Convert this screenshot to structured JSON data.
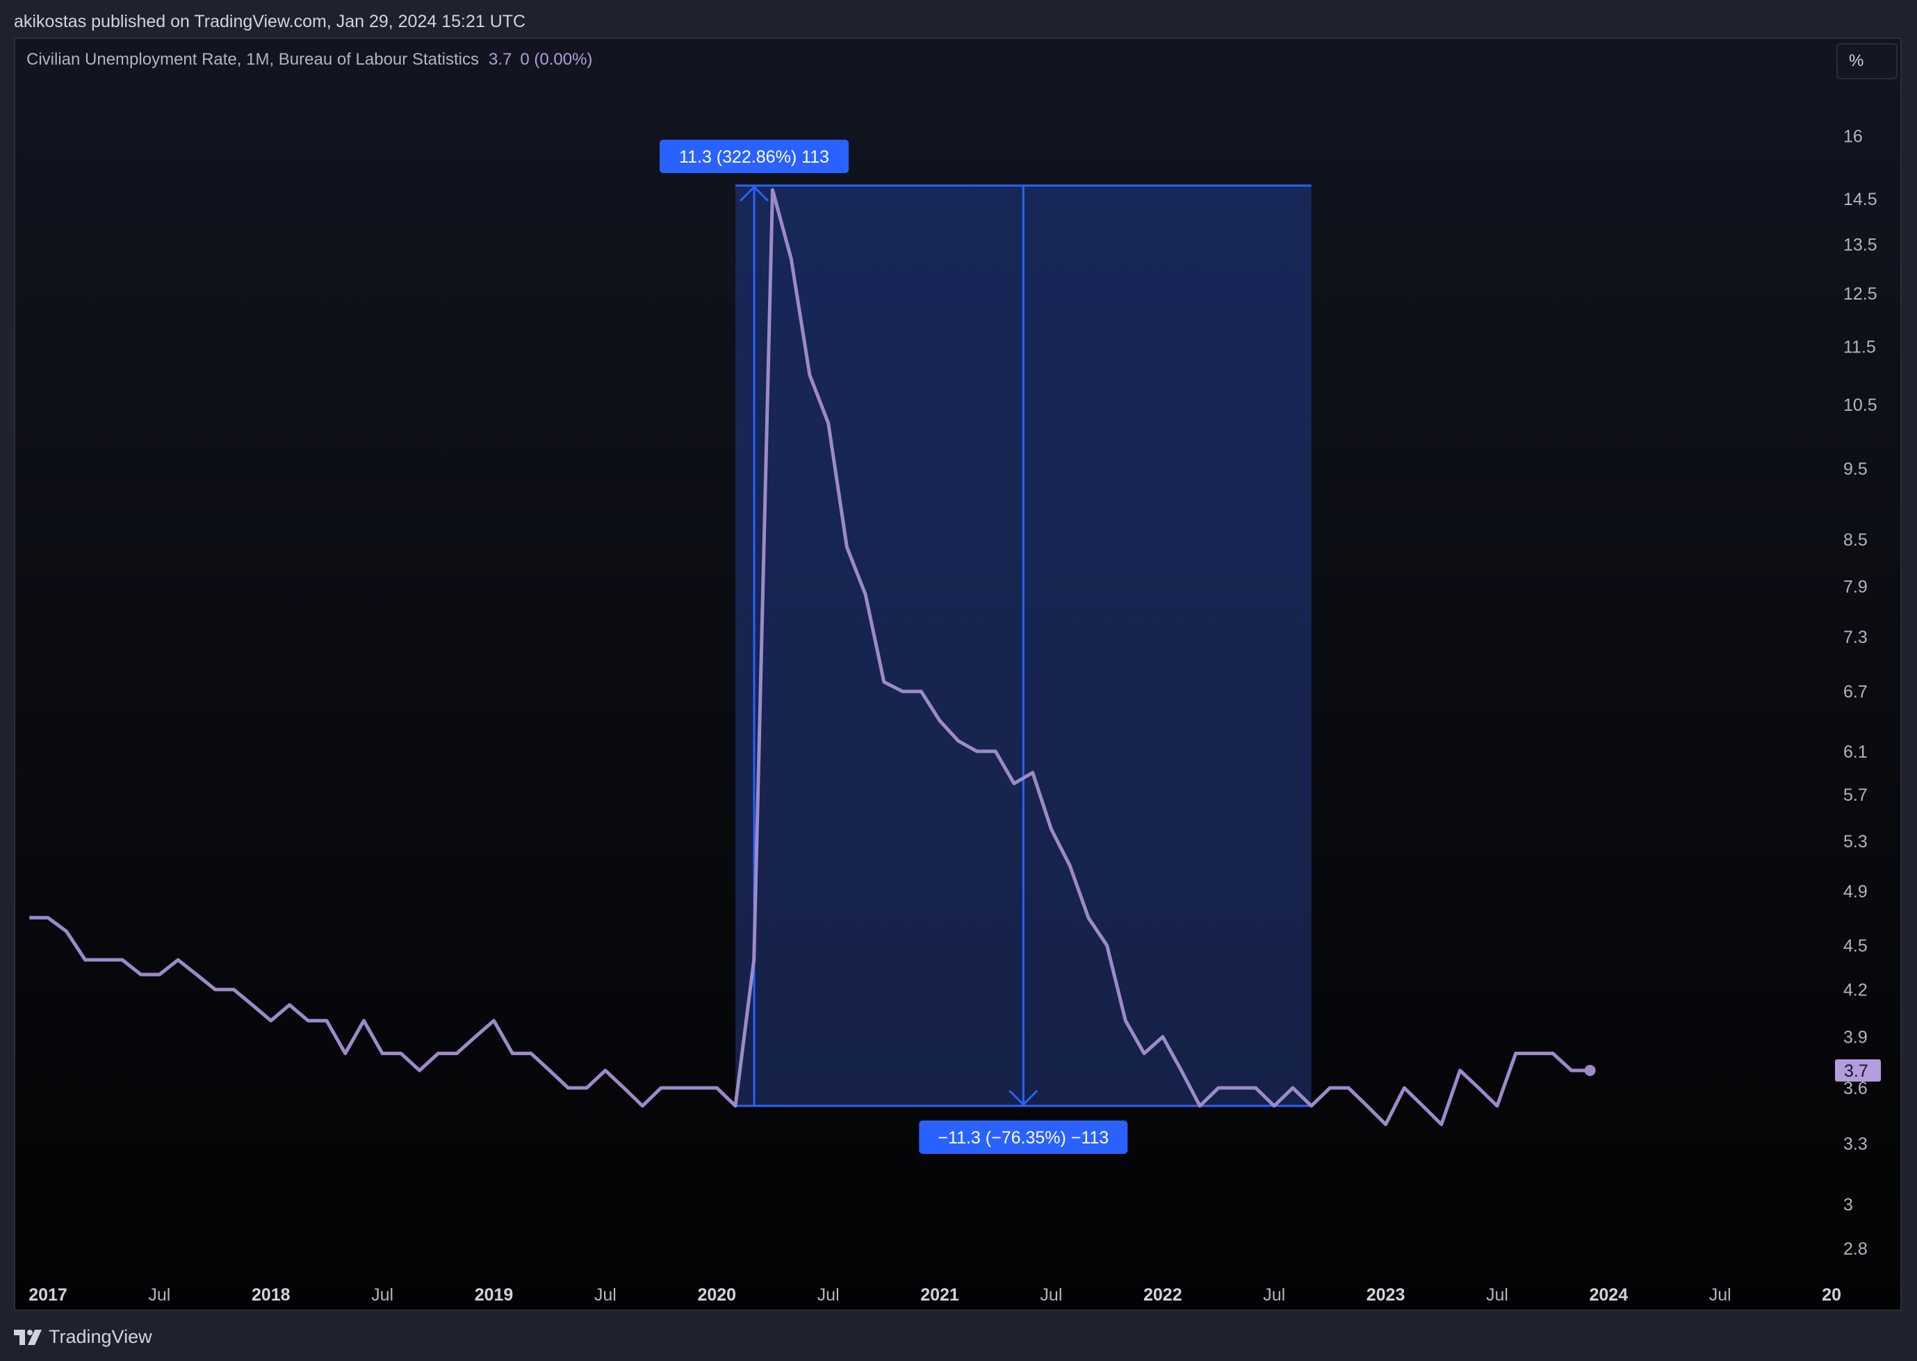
{
  "header": {
    "published_text": "akikostas published on TradingView.com, Jan 29, 2024 15:21 UTC"
  },
  "legend": {
    "title": "Civilian Unemployment Rate, 1M, Bureau of Labour Statistics",
    "value": "3.7",
    "change": "0 (0.00%)"
  },
  "scale_button": "%",
  "footer": {
    "brand": "TradingView"
  },
  "colors": {
    "line": "#9c8ac9",
    "measure_blue": "#2962ff",
    "measure_fill": "#1a2a5c",
    "price_tag": "#b39ddb"
  },
  "chart_data": {
    "type": "line",
    "scale": "log",
    "ylim": [
      2.7,
      17
    ],
    "y_ticks": [
      16,
      14.5,
      13.5,
      12.5,
      11.5,
      10.5,
      9.5,
      8.5,
      7.9,
      7.3,
      6.7,
      6.1,
      5.7,
      5.3,
      4.9,
      4.5,
      4.2,
      3.9,
      3.6,
      3.3,
      3,
      2.8
    ],
    "x_ticks": [
      {
        "label": "2017",
        "date": "2017-01",
        "bold": true
      },
      {
        "label": "Jul",
        "date": "2017-07",
        "bold": false
      },
      {
        "label": "2018",
        "date": "2018-01",
        "bold": true
      },
      {
        "label": "Jul",
        "date": "2018-07",
        "bold": false
      },
      {
        "label": "2019",
        "date": "2019-01",
        "bold": true
      },
      {
        "label": "Jul",
        "date": "2019-07",
        "bold": false
      },
      {
        "label": "2020",
        "date": "2020-01",
        "bold": true
      },
      {
        "label": "Jul",
        "date": "2020-07",
        "bold": false
      },
      {
        "label": "2021",
        "date": "2021-01",
        "bold": true
      },
      {
        "label": "Jul",
        "date": "2021-07",
        "bold": false
      },
      {
        "label": "2022",
        "date": "2022-01",
        "bold": true
      },
      {
        "label": "Jul",
        "date": "2022-07",
        "bold": false
      },
      {
        "label": "2023",
        "date": "2023-01",
        "bold": true
      },
      {
        "label": "Jul",
        "date": "2023-07",
        "bold": false
      },
      {
        "label": "2024",
        "date": "2024-01",
        "bold": true
      },
      {
        "label": "Jul",
        "date": "2024-07",
        "bold": false
      },
      {
        "label": "20",
        "date": "2025-01",
        "bold": true
      }
    ],
    "series": [
      {
        "start": "2016-12",
        "frequency": "monthly",
        "values": [
          4.7,
          4.7,
          4.6,
          4.4,
          4.4,
          4.4,
          4.3,
          4.3,
          4.4,
          4.3,
          4.2,
          4.2,
          4.1,
          4.0,
          4.1,
          4.0,
          4.0,
          3.8,
          4.0,
          3.8,
          3.8,
          3.7,
          3.8,
          3.8,
          3.9,
          4.0,
          3.8,
          3.8,
          3.7,
          3.6,
          3.6,
          3.7,
          3.6,
          3.5,
          3.6,
          3.6,
          3.6,
          3.6,
          3.5,
          4.4,
          14.7,
          13.2,
          11.0,
          10.2,
          8.4,
          7.8,
          6.8,
          6.7,
          6.7,
          6.4,
          6.2,
          6.1,
          6.1,
          5.8,
          5.9,
          5.4,
          5.1,
          4.7,
          4.5,
          4.0,
          3.8,
          3.9,
          3.7,
          3.5,
          3.6,
          3.6,
          3.6,
          3.5,
          3.6,
          3.5,
          3.6,
          3.6,
          3.5,
          3.4,
          3.6,
          3.5,
          3.4,
          3.7,
          3.6,
          3.5,
          3.8,
          3.8,
          3.8,
          3.7,
          3.7
        ]
      }
    ],
    "last_value_label": "3.7",
    "measure": {
      "start": "2020-02",
      "end": "2022-09",
      "low": 3.5,
      "high": 14.8,
      "up_label": "11.3 (322.86%) 113",
      "down_label": "−11.3 (−76.35%) −113"
    }
  }
}
